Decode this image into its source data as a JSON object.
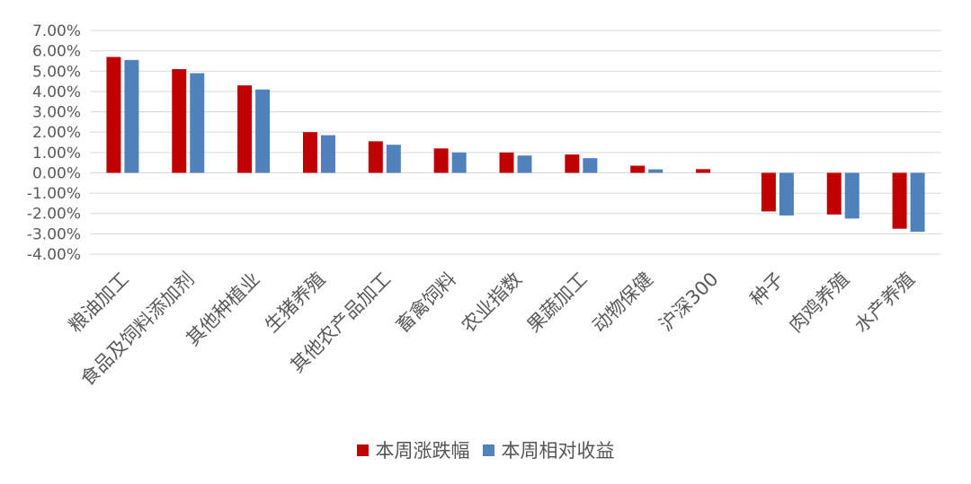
{
  "chart_data": {
    "type": "bar",
    "categories": [
      "粮油加工",
      "食品及饲料添加剂",
      "其他种植业",
      "生猪养殖",
      "其他农产品加工",
      "畜禽饲料",
      "农业指数",
      "果蔬加工",
      "动物保健",
      "沪深300",
      "种子",
      "肉鸡养殖",
      "水产养殖"
    ],
    "series": [
      {
        "name": "本周涨跌幅",
        "color": "#C00000",
        "values": [
          5.7,
          5.1,
          4.3,
          2.0,
          1.55,
          1.2,
          1.0,
          0.9,
          0.35,
          0.18,
          -1.9,
          -2.05,
          -2.75
        ]
      },
      {
        "name": "本周相对收益",
        "color": "#4F81BD",
        "values": [
          5.55,
          4.9,
          4.1,
          1.85,
          1.38,
          1.0,
          0.85,
          0.72,
          0.17,
          0.0,
          -2.1,
          -2.25,
          -2.9
        ]
      }
    ],
    "yticks": [
      "7.00%",
      "6.00%",
      "5.00%",
      "4.00%",
      "3.00%",
      "2.00%",
      "1.00%",
      "0.00%",
      "-1.00%",
      "-2.00%",
      "-3.00%",
      "-4.00%"
    ],
    "ylim": [
      -4,
      7
    ],
    "grid": true,
    "legend_position": "bottom"
  }
}
